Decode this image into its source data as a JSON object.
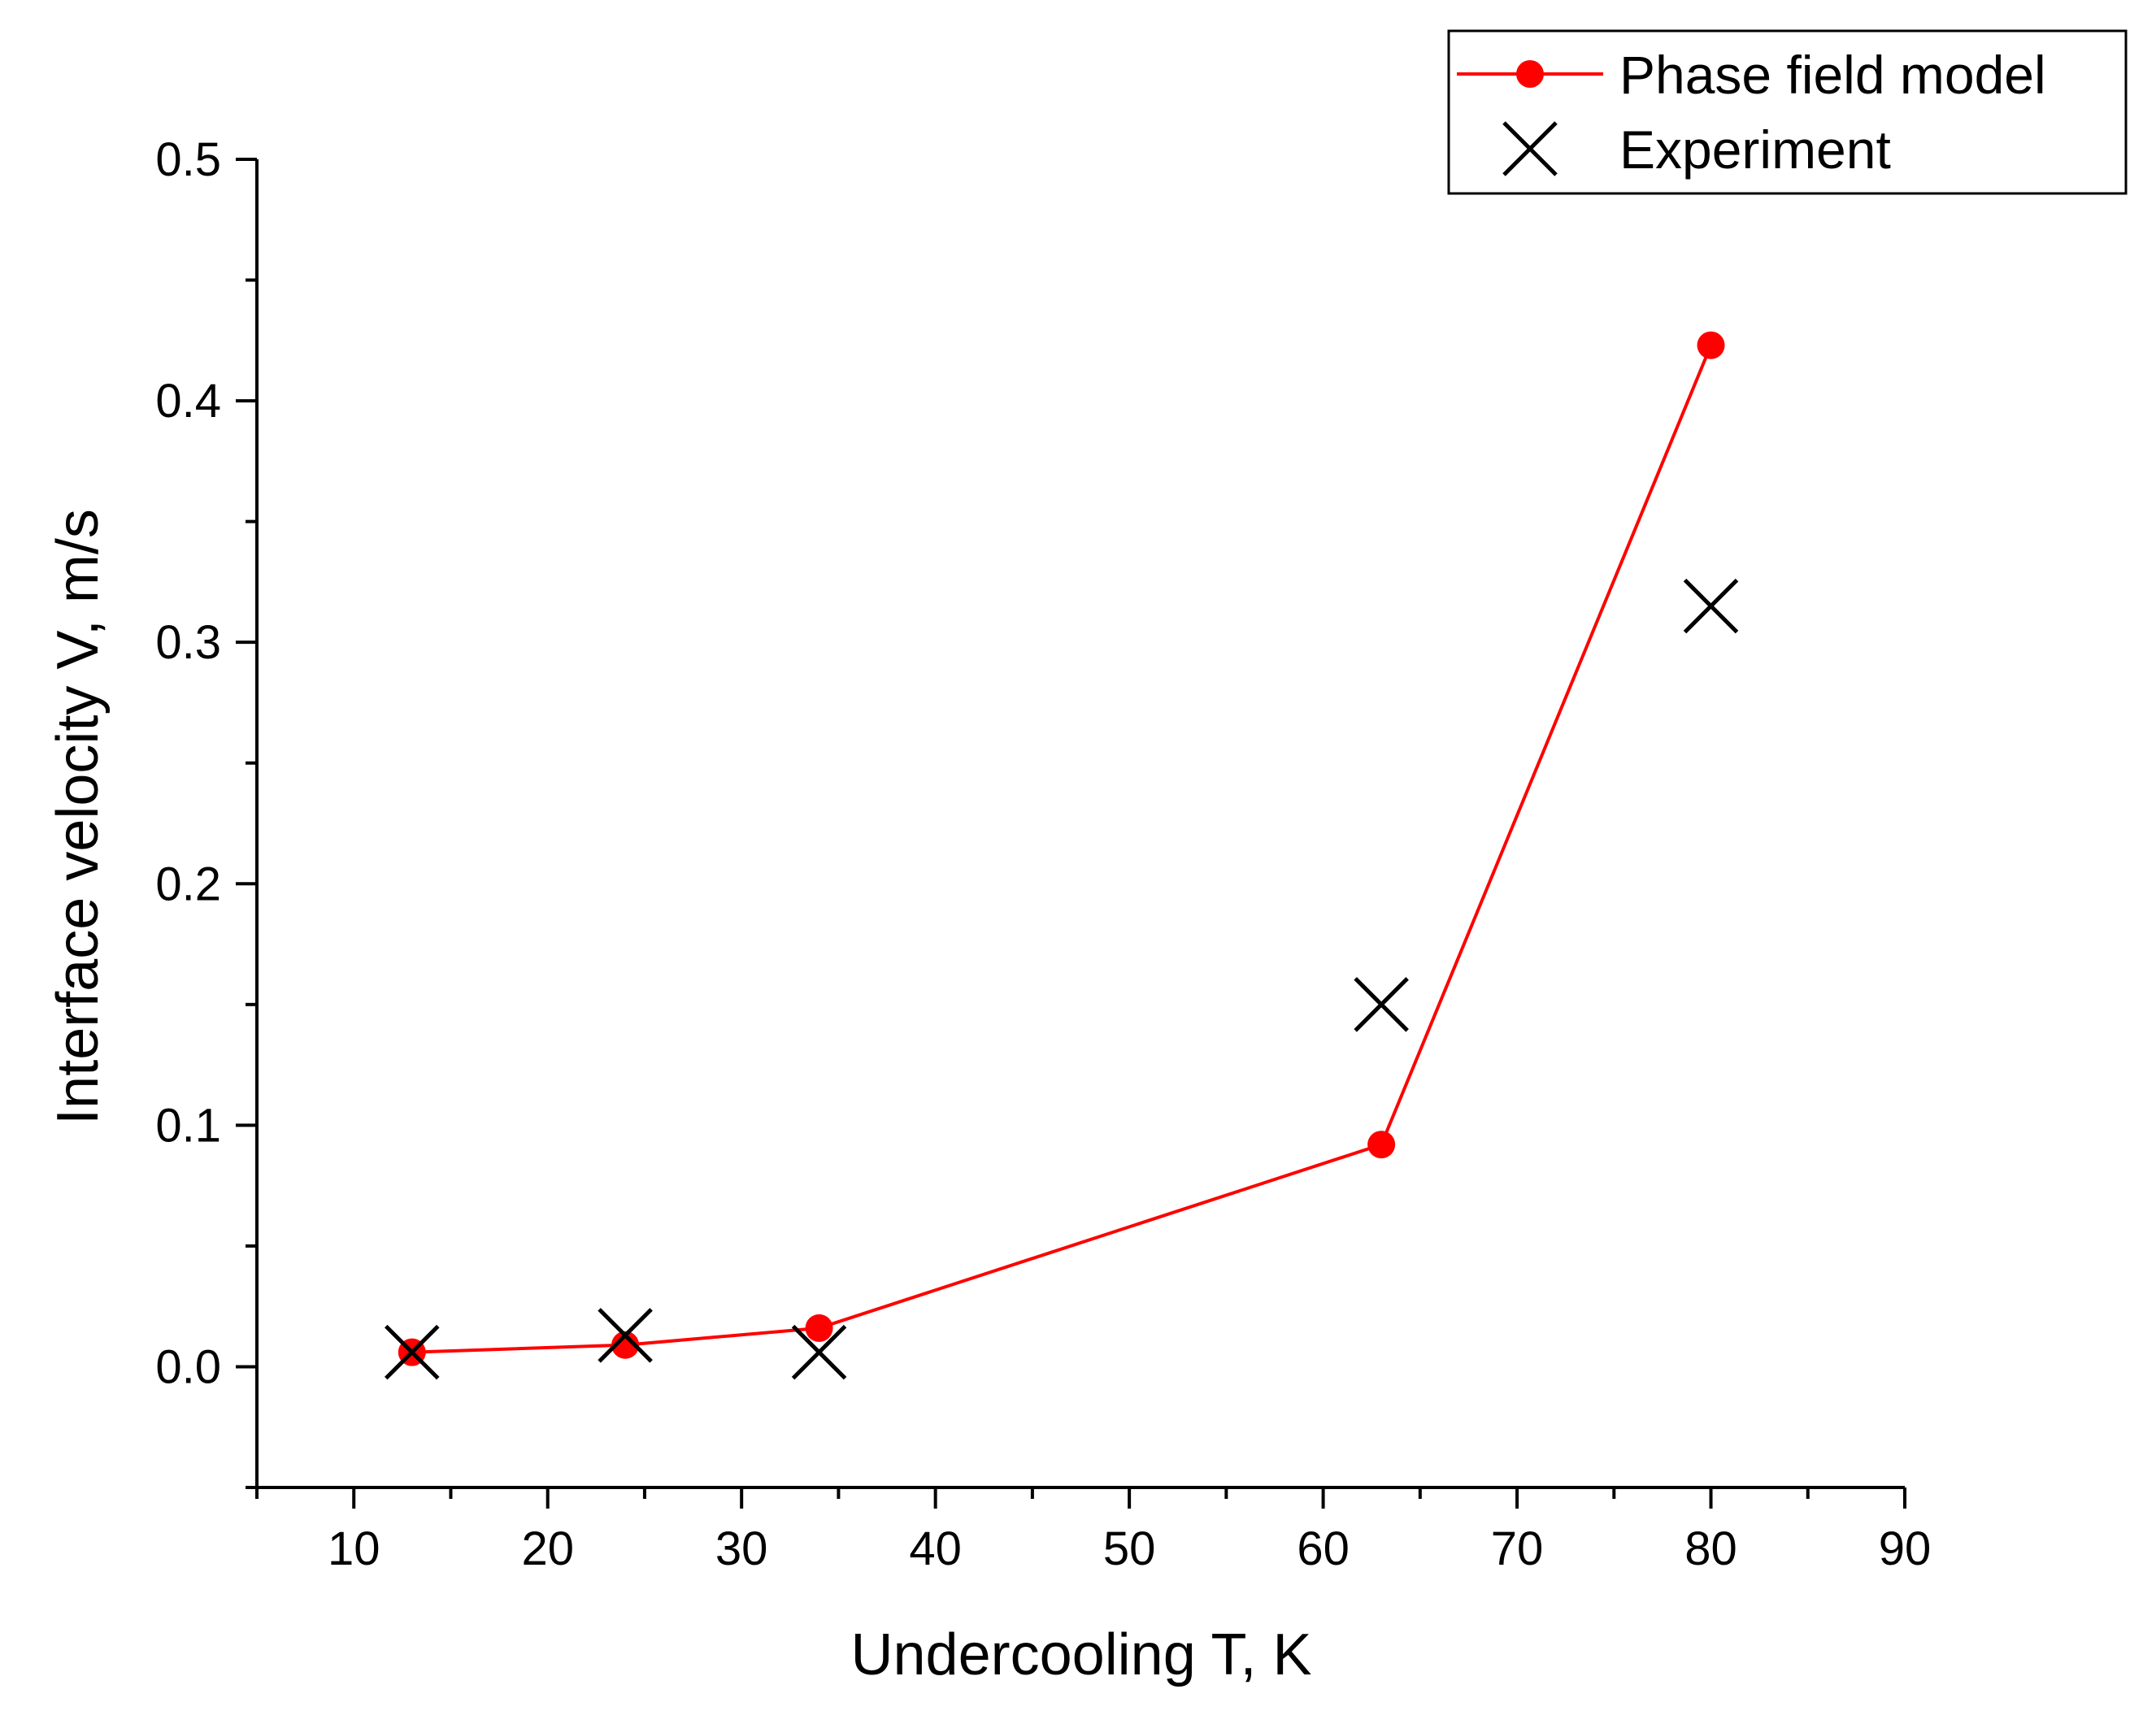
{
  "chart_data": {
    "type": "line",
    "title": "",
    "xlabel": "Undercooling T, K",
    "ylabel": "Interface velocity V, m/s",
    "xlim": [
      5,
      90
    ],
    "ylim": [
      -0.05,
      0.5
    ],
    "x_major_ticks": [
      10,
      20,
      30,
      40,
      50,
      60,
      70,
      80,
      90
    ],
    "x_minor_ticks": [
      5,
      15,
      25,
      35,
      45,
      55,
      65,
      75,
      85
    ],
    "y_major_ticks": [
      0.0,
      0.1,
      0.2,
      0.3,
      0.4,
      0.5
    ],
    "y_minor_ticks": [
      -0.05,
      0.05,
      0.15,
      0.25,
      0.35,
      0.45
    ],
    "x_tick_labels": [
      "10",
      "20",
      "30",
      "40",
      "50",
      "60",
      "70",
      "80",
      "90"
    ],
    "y_tick_labels": [
      "0.0",
      "0.1",
      "0.2",
      "0.3",
      "0.4",
      "0.5"
    ],
    "grid": false,
    "legend_position": "top-right",
    "series": [
      {
        "name": "Phase field model",
        "style": "line-marker",
        "marker": "circle",
        "color": "#ff0000",
        "x": [
          13,
          24,
          34,
          63,
          80
        ],
        "y": [
          0.006,
          0.009,
          0.016,
          0.092,
          0.423
        ]
      },
      {
        "name": "Experiment",
        "style": "marker",
        "marker": "x",
        "color": "#000000",
        "x": [
          13,
          24,
          34,
          63,
          80
        ],
        "y": [
          0.006,
          0.013,
          0.006,
          0.15,
          0.315
        ]
      }
    ]
  }
}
